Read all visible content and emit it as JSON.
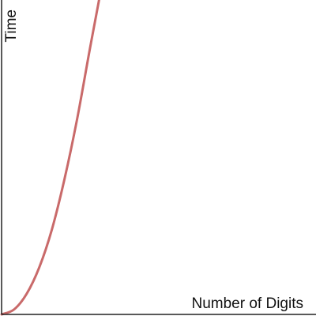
{
  "chart_data": {
    "type": "line",
    "xlabel": "Number of Digits",
    "ylabel": "Time",
    "xlim": [
      0,
      1
    ],
    "ylim": [
      0,
      1
    ],
    "grid": false,
    "ticks": false,
    "series": [
      {
        "color": "#c96a6a",
        "x": [
          0,
          0.04,
          0.08,
          0.12,
          0.16,
          0.2,
          0.24,
          0.28,
          0.31
        ],
        "y": [
          0,
          0.016,
          0.066,
          0.15,
          0.27,
          0.43,
          0.62,
          0.84,
          1.0
        ]
      }
    ]
  }
}
